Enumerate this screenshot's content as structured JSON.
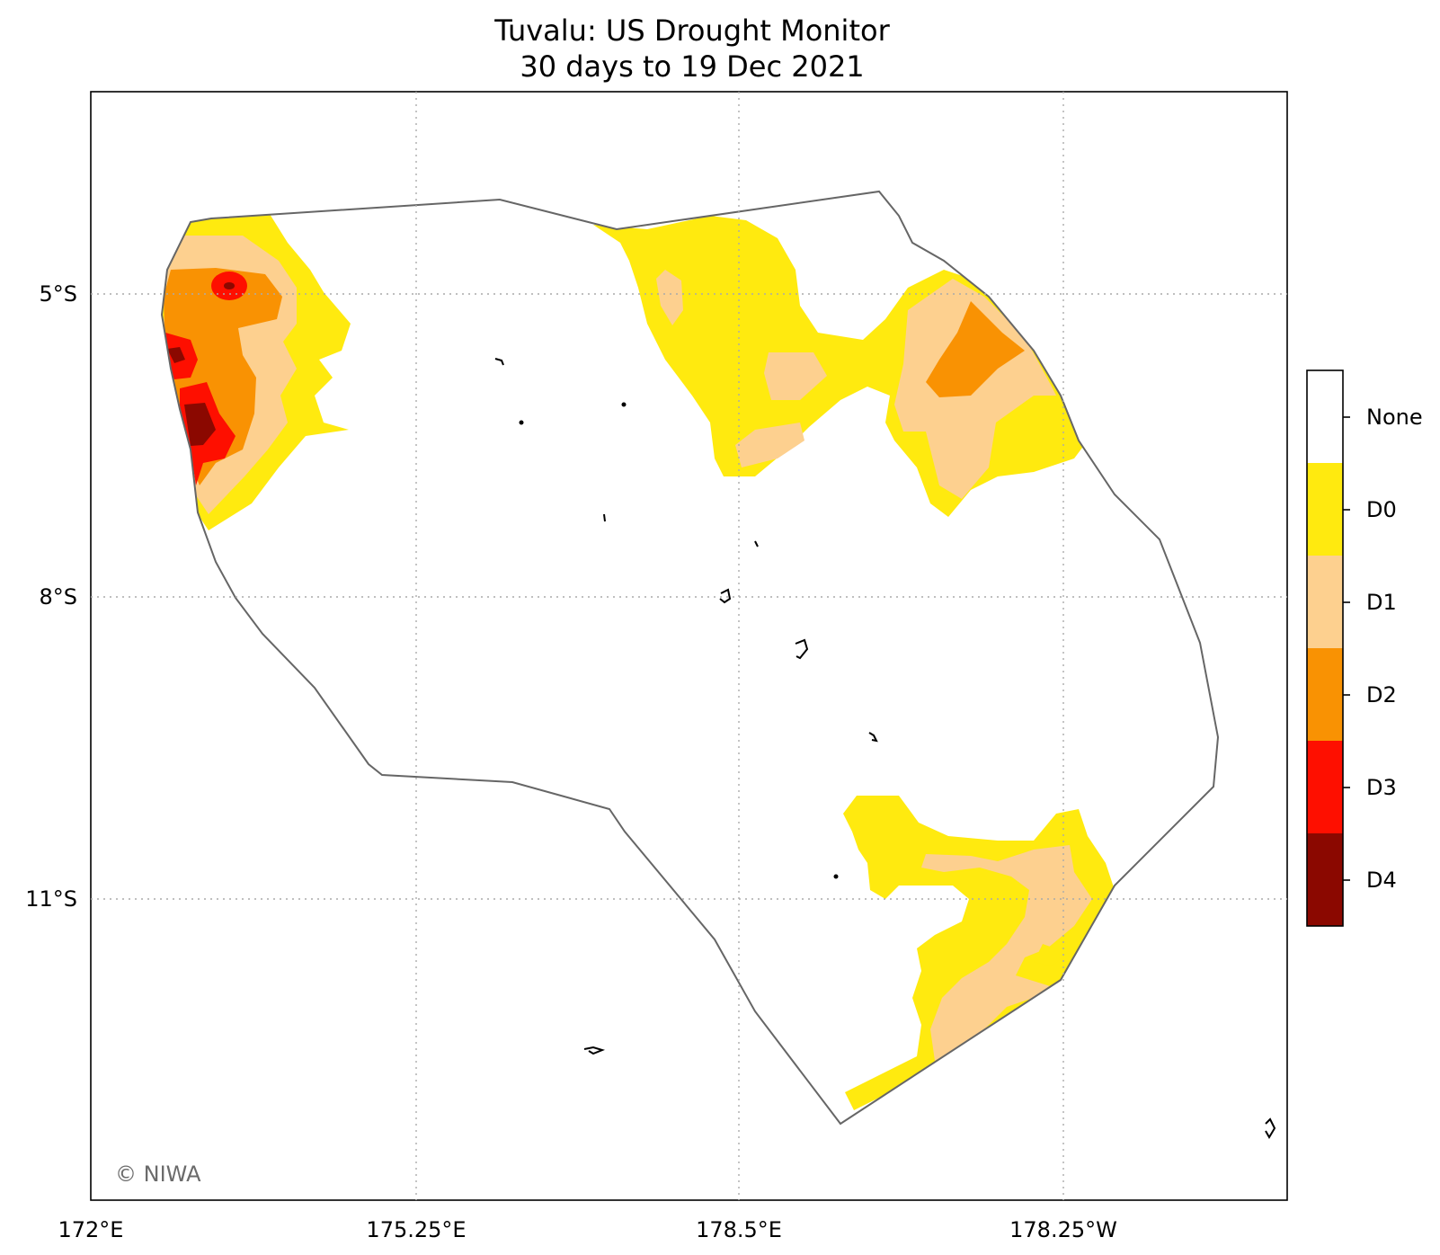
{
  "title": {
    "line1": "Tuvalu: US Drought Monitor",
    "line2": "30 days to 19 Dec 2021"
  },
  "axes": {
    "lat_labels": [
      "5°S",
      "8°S",
      "11°S"
    ],
    "lon_labels": [
      "172°E",
      "175.25°E",
      "178.5°E",
      "178.25°W"
    ],
    "gridlines": "dotted"
  },
  "legend": {
    "placement": "right",
    "classes": [
      {
        "label": "None",
        "color": "#ffffff"
      },
      {
        "label": "D0",
        "color": "#ffea0f"
      },
      {
        "label": "D1",
        "color": "#fdd08f"
      },
      {
        "label": "D2",
        "color": "#f99203"
      },
      {
        "label": "D3",
        "color": "#fe0f00"
      },
      {
        "label": "D4",
        "color": "#8b0800"
      }
    ]
  },
  "credit": "© NIWA"
}
